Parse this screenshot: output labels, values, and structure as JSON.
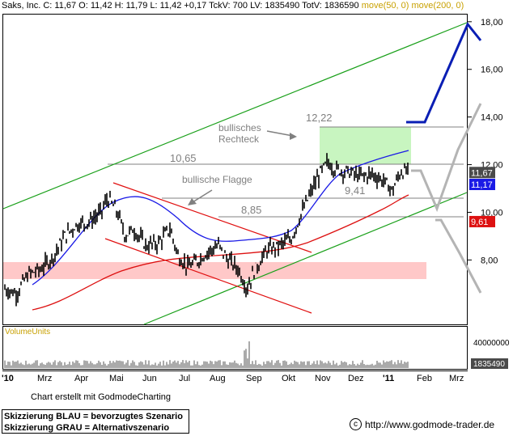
{
  "header": {
    "symbol": "Saks, Inc.",
    "quote": "C: 11,67 O: 11,42 H: 11,79 L: 11,42 +0,17 TckV: 700 LV: 1835490 TotV: 1836590",
    "ma_label": "move(50, 0) move(200, 0)"
  },
  "chart_data": {
    "type": "candlestick",
    "y_axis": {
      "ticks": [
        "18,00",
        "16,00",
        "14,00",
        "12,00",
        "10,00",
        "8,00"
      ],
      "ylim": [
        5.5,
        18.3
      ]
    },
    "x_axis": {
      "labels": [
        "'10",
        "Mrz",
        "Apr",
        "Mai",
        "Jun",
        "Jul",
        "Aug",
        "Sep",
        "Okt",
        "Nov",
        "Dez",
        "'11",
        "Feb",
        "Mrz"
      ]
    },
    "price_badges": [
      {
        "text": "11,67",
        "value": 11.67,
        "color": "#4a4a4a"
      },
      {
        "text": "11,17",
        "value": 11.17,
        "color": "#1a1ae6"
      },
      {
        "text": "9,61",
        "value": 9.61,
        "color": "#dd1111"
      }
    ],
    "annotations": {
      "level_12_22": "12,22",
      "level_10_65": "10,65",
      "level_9_41": "9,41",
      "level_8_85": "8,85",
      "rect_label": "bullisches\nRechteck",
      "flag_label": "bullische Flagge"
    },
    "volume": {
      "label": "VolumeUnits",
      "ticks": [
        "40000000",
        "1835490"
      ]
    },
    "series": [
      {
        "name": "move(50, 0)",
        "color": "#1a1ae6"
      },
      {
        "name": "move(200, 0)",
        "color": "#dd1111"
      }
    ]
  },
  "footer": {
    "credit": "Chart erstellt mit GodmodeCharting",
    "legend_blue": "Skizzierung BLAU = bevorzugtes Szenario",
    "legend_grey": "Skizzierung GRAU = Alternativszenario",
    "url": "http://www.godmode-trader.de",
    "copyright_symbol": "c"
  },
  "colors": {
    "blue_scenario": "#0a1eb4",
    "grey_scenario": "#b4b4b4",
    "channel": "#1aa01a",
    "flag": "#e01010",
    "rect_fill": "#c8f5c0",
    "support_zone": "#ffc8c8"
  }
}
